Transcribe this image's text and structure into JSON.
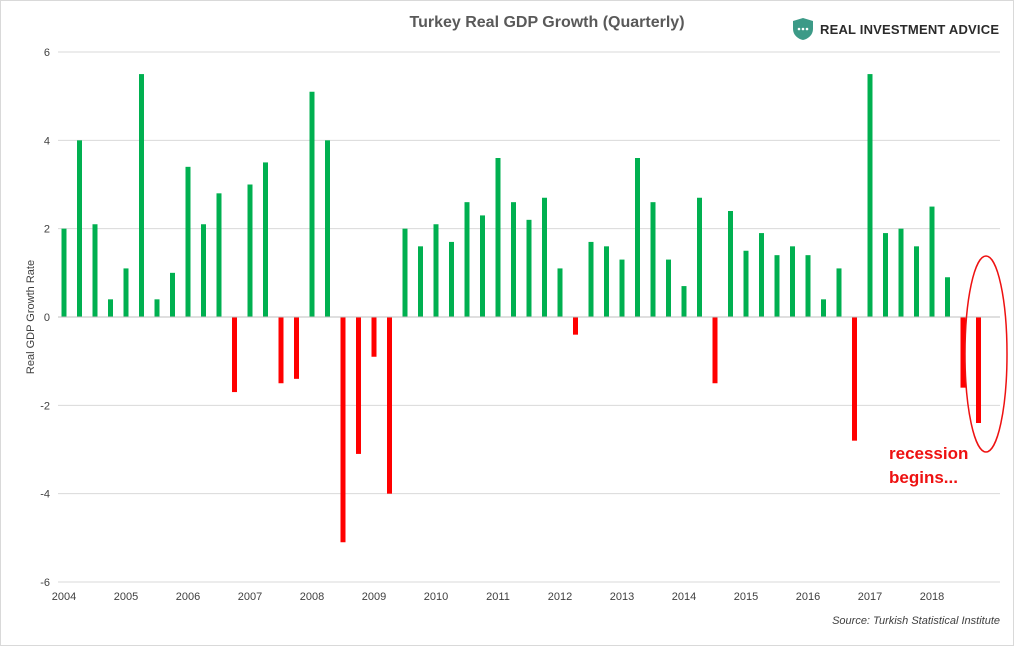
{
  "colors": {
    "positive": "#00b050",
    "negative": "#ff0000",
    "grid": "#d9d9d9",
    "axis_text": "#404040",
    "highlight": "#ee1111",
    "logo_shield": "#3c9a87"
  },
  "branding": {
    "logo_text": "REAL INVESTMENT ADVICE",
    "logo_icon": "shield-icon"
  },
  "source": "Source: Turkish Statistical Institute",
  "annotation": {
    "line1": "recession",
    "line2": "begins..."
  },
  "chart_data": {
    "type": "bar",
    "title": "Turkey Real GDP Growth (Quarterly)",
    "xlabel": "",
    "ylabel": "Real GDP Growth Rate",
    "ylim": [
      -6,
      6
    ],
    "yticks": [
      6,
      4,
      2,
      0,
      -2,
      -4,
      -6
    ],
    "grid": true,
    "year_labels": [
      "2004",
      "2005",
      "2006",
      "2007",
      "2008",
      "2009",
      "2010",
      "2011",
      "2012",
      "2013",
      "2014",
      "2015",
      "2016",
      "2017",
      "2018"
    ],
    "categories": [
      "2004 Q1",
      "2004 Q2",
      "2004 Q3",
      "2004 Q4",
      "2005 Q1",
      "2005 Q2",
      "2005 Q3",
      "2005 Q4",
      "2006 Q1",
      "2006 Q2",
      "2006 Q3",
      "2006 Q4",
      "2007 Q1",
      "2007 Q2",
      "2007 Q3",
      "2007 Q4",
      "2008 Q1",
      "2008 Q2",
      "2008 Q3",
      "2008 Q4",
      "2009 Q1",
      "2009 Q2",
      "2009 Q3",
      "2009 Q4",
      "2010 Q1",
      "2010 Q2",
      "2010 Q3",
      "2010 Q4",
      "2011 Q1",
      "2011 Q2",
      "2011 Q3",
      "2011 Q4",
      "2012 Q1",
      "2012 Q2",
      "2012 Q3",
      "2012 Q4",
      "2013 Q1",
      "2013 Q2",
      "2013 Q3",
      "2013 Q4",
      "2014 Q1",
      "2014 Q2",
      "2014 Q3",
      "2014 Q4",
      "2015 Q1",
      "2015 Q2",
      "2015 Q3",
      "2015 Q4",
      "2016 Q1",
      "2016 Q2",
      "2016 Q3",
      "2016 Q4",
      "2017 Q1",
      "2017 Q2",
      "2017 Q3",
      "2017 Q4",
      "2018 Q1",
      "2018 Q2",
      "2018 Q3",
      "2018 Q4"
    ],
    "values": [
      2.0,
      4.0,
      2.1,
      0.4,
      1.1,
      5.5,
      0.4,
      1.0,
      3.4,
      2.1,
      2.8,
      -1.7,
      3.0,
      3.5,
      -1.5,
      -1.4,
      5.1,
      4.0,
      -5.1,
      -3.1,
      -0.9,
      -4.0,
      2.0,
      1.6,
      2.1,
      1.7,
      2.6,
      2.3,
      3.6,
      2.6,
      2.2,
      2.7,
      1.1,
      -0.4,
      1.7,
      1.6,
      1.3,
      3.6,
      2.6,
      1.3,
      0.7,
      2.7,
      -1.5,
      2.4,
      1.5,
      1.9,
      1.4,
      1.6,
      1.4,
      0.4,
      1.1,
      -2.8,
      5.5,
      1.9,
      2.0,
      1.6,
      2.5,
      0.9,
      -1.6,
      -2.4
    ],
    "highlight": {
      "shape": "ellipse",
      "categories": [
        "2018 Q3",
        "2018 Q4"
      ],
      "label": "recession begins..."
    }
  }
}
